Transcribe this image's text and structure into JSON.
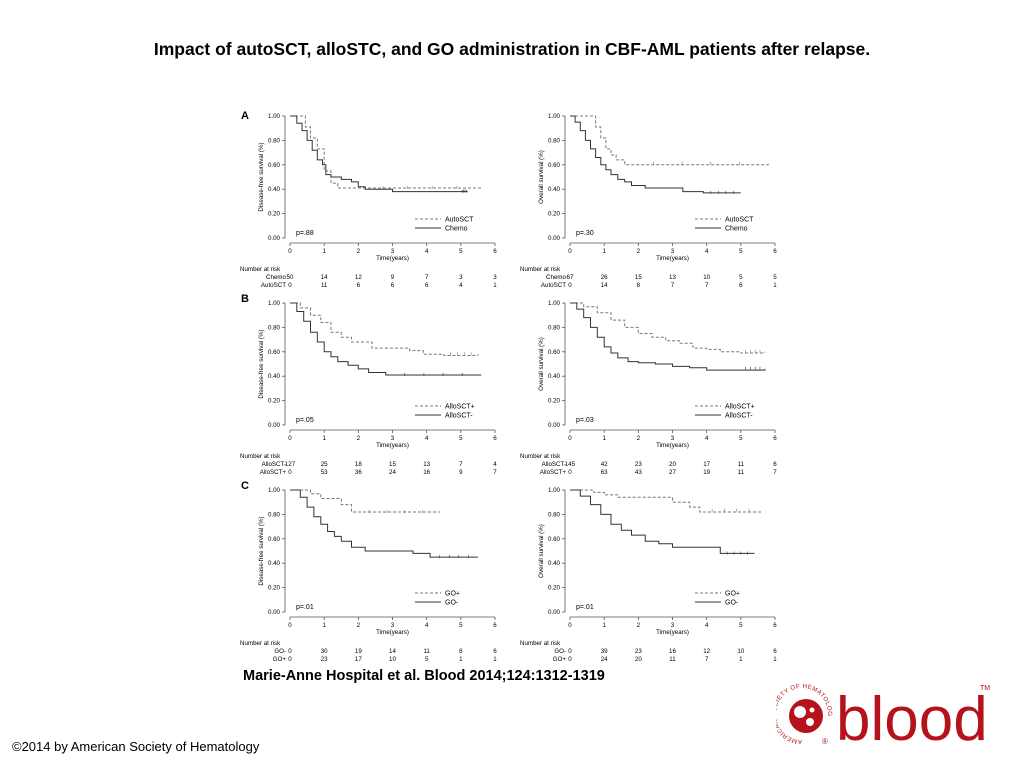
{
  "title": "Impact of autoSCT, alloSTC, and GO administration in CBF-AML patients after relapse.",
  "citation": "Marie-Anne Hospital et al. Blood 2014;124:1312-1319",
  "copyright": "©2014 by American Society of Hematology",
  "logo": {
    "word": "blood",
    "ring_text": "AMERICAN SOCIETY OF HEMATOLOGY",
    "tm": "TM",
    "registered": "®",
    "color": "#b5121b"
  },
  "panels": [
    {
      "letter": "A"
    },
    {
      "letter": "B"
    },
    {
      "letter": "C"
    }
  ],
  "chart_data": [
    {
      "type": "line",
      "panel": "A",
      "ylabel": "Disease-free survival (%)",
      "xlabel": "Time(years)",
      "xlim": [
        0,
        6
      ],
      "ylim": [
        0,
        1
      ],
      "xticks": [
        "0",
        "1",
        "2",
        "3",
        "4",
        "5",
        "6"
      ],
      "yticks": [
        "0.00",
        "0.20",
        "0.40",
        "0.60",
        "0.80",
        "1.00"
      ],
      "pvalue": "p=.88",
      "risk_title": "Number at risk",
      "series": [
        {
          "name": "AutoSCT",
          "dash": true,
          "x": [
            0,
            0.45,
            0.6,
            0.8,
            1.0,
            1.2,
            1.4,
            2.0,
            5.6
          ],
          "y": [
            1.0,
            0.91,
            0.82,
            0.73,
            0.55,
            0.45,
            0.41,
            0.41,
            0.41
          ]
        },
        {
          "name": "Chemo",
          "dash": false,
          "x": [
            0,
            0.2,
            0.35,
            0.5,
            0.65,
            0.8,
            0.95,
            1.05,
            1.2,
            1.5,
            1.8,
            2.0,
            2.2,
            3.0,
            5.0,
            5.2
          ],
          "y": [
            1.0,
            0.94,
            0.88,
            0.8,
            0.72,
            0.64,
            0.6,
            0.52,
            0.5,
            0.48,
            0.46,
            0.42,
            0.4,
            0.38,
            0.38,
            0.38
          ]
        }
      ],
      "risk_rows": [
        {
          "label": "Chemo",
          "values": [
            "50",
            "14",
            "12",
            "9",
            "7",
            "3",
            "3"
          ]
        },
        {
          "label": "AutoSCT",
          "values": [
            "0",
            "11",
            "6",
            "6",
            "6",
            "4",
            "1"
          ]
        }
      ]
    },
    {
      "type": "line",
      "panel": "A",
      "ylabel": "Overall survival (%)",
      "xlabel": "Time(years)",
      "xlim": [
        0,
        6
      ],
      "ylim": [
        0,
        1
      ],
      "xticks": [
        "0",
        "1",
        "2",
        "3",
        "4",
        "5",
        "6"
      ],
      "yticks": [
        "0.00",
        "0.20",
        "0.40",
        "0.60",
        "0.80",
        "1.00"
      ],
      "pvalue": "p=.30",
      "risk_title": "Number at risk",
      "series": [
        {
          "name": "AutoSCT",
          "dash": true,
          "x": [
            0,
            0.75,
            0.9,
            1.05,
            1.2,
            1.35,
            1.6,
            5.8
          ],
          "y": [
            1.0,
            0.91,
            0.82,
            0.73,
            0.68,
            0.64,
            0.6,
            0.61
          ]
        },
        {
          "name": "Chemo",
          "dash": false,
          "x": [
            0,
            0.15,
            0.3,
            0.45,
            0.6,
            0.75,
            0.9,
            1.05,
            1.2,
            1.4,
            1.6,
            1.8,
            2.2,
            2.6,
            3.3,
            3.9,
            5.0
          ],
          "y": [
            1.0,
            0.95,
            0.88,
            0.8,
            0.73,
            0.66,
            0.6,
            0.56,
            0.52,
            0.48,
            0.46,
            0.43,
            0.41,
            0.41,
            0.38,
            0.37,
            0.37
          ]
        }
      ],
      "risk_rows": [
        {
          "label": "Chemo",
          "values": [
            "67",
            "26",
            "15",
            "13",
            "10",
            "5",
            "5"
          ]
        },
        {
          "label": "AutoSCT",
          "values": [
            "0",
            "14",
            "8",
            "7",
            "7",
            "6",
            "1"
          ]
        }
      ]
    },
    {
      "type": "line",
      "panel": "B",
      "ylabel": "Disease-free survival (%)",
      "xlabel": "Time(years)",
      "xlim": [
        0,
        6
      ],
      "ylim": [
        0,
        1
      ],
      "xticks": [
        "0",
        "1",
        "2",
        "3",
        "4",
        "5",
        "6"
      ],
      "yticks": [
        "0.00",
        "0.20",
        "0.40",
        "0.60",
        "0.80",
        "1.00"
      ],
      "pvalue": "p=.05",
      "risk_title": "Number at risk",
      "series": [
        {
          "name": "AlloSCT+",
          "dash": true,
          "x": [
            0,
            0.3,
            0.6,
            0.9,
            1.2,
            1.5,
            1.8,
            2.4,
            3.0,
            3.5,
            3.9,
            4.5,
            5.5
          ],
          "y": [
            1.0,
            0.96,
            0.9,
            0.84,
            0.76,
            0.72,
            0.68,
            0.63,
            0.63,
            0.61,
            0.58,
            0.57,
            0.58
          ]
        },
        {
          "name": "AlloSCT-",
          "dash": false,
          "x": [
            0,
            0.2,
            0.4,
            0.6,
            0.8,
            1.0,
            1.2,
            1.4,
            1.7,
            2.0,
            2.3,
            2.8,
            5.6
          ],
          "y": [
            1.0,
            0.93,
            0.85,
            0.76,
            0.68,
            0.6,
            0.56,
            0.52,
            0.49,
            0.46,
            0.43,
            0.41,
            0.41
          ]
        }
      ],
      "risk_rows": [
        {
          "label": "AlloSCT-",
          "values": [
            "127",
            "25",
            "18",
            "15",
            "13",
            "7",
            "4"
          ]
        },
        {
          "label": "AlloSCT+",
          "values": [
            "0",
            "53",
            "36",
            "24",
            "16",
            "9",
            "7"
          ]
        }
      ]
    },
    {
      "type": "line",
      "panel": "B",
      "ylabel": "Overall survival (%)",
      "xlabel": "Time(years)",
      "xlim": [
        0,
        6
      ],
      "ylim": [
        0,
        1
      ],
      "xticks": [
        "0",
        "1",
        "2",
        "3",
        "4",
        "5",
        "6"
      ],
      "yticks": [
        "0.00",
        "0.20",
        "0.40",
        "0.60",
        "0.80",
        "1.00"
      ],
      "pvalue": "p=.03",
      "risk_title": "Number at risk",
      "series": [
        {
          "name": "AlloSCT+",
          "dash": true,
          "x": [
            0,
            0.4,
            0.8,
            1.2,
            1.6,
            2.0,
            2.4,
            2.8,
            3.2,
            3.6,
            4.0,
            4.4,
            5.0,
            5.7
          ],
          "y": [
            1.0,
            0.97,
            0.92,
            0.86,
            0.8,
            0.75,
            0.72,
            0.69,
            0.67,
            0.63,
            0.62,
            0.6,
            0.59,
            0.6
          ]
        },
        {
          "name": "AlloSCT-",
          "dash": false,
          "x": [
            0,
            0.2,
            0.4,
            0.6,
            0.8,
            1.0,
            1.2,
            1.4,
            1.7,
            2.0,
            2.5,
            3.0,
            3.5,
            4.0,
            5.0,
            5.7
          ],
          "y": [
            1.0,
            0.95,
            0.88,
            0.8,
            0.72,
            0.64,
            0.59,
            0.55,
            0.52,
            0.51,
            0.5,
            0.48,
            0.47,
            0.45,
            0.45,
            0.46
          ]
        }
      ],
      "risk_rows": [
        {
          "label": "AlloSCT-",
          "values": [
            "145",
            "42",
            "23",
            "20",
            "17",
            "11",
            "6"
          ]
        },
        {
          "label": "AlloSCT+",
          "values": [
            "0",
            "63",
            "43",
            "27",
            "19",
            "11",
            "7"
          ]
        }
      ]
    },
    {
      "type": "line",
      "panel": "C",
      "ylabel": "Disease-free survival (%)",
      "xlabel": "Time(years)",
      "xlim": [
        0,
        6
      ],
      "ylim": [
        0,
        1
      ],
      "xticks": [
        "0",
        "1",
        "2",
        "3",
        "4",
        "5",
        "6"
      ],
      "yticks": [
        "0.00",
        "0.20",
        "0.40",
        "0.60",
        "0.80",
        "1.00"
      ],
      "pvalue": "p=.01",
      "risk_title": "Number at risk",
      "series": [
        {
          "name": "GO+",
          "dash": true,
          "x": [
            0,
            0.6,
            0.9,
            1.5,
            1.8,
            4.4
          ],
          "y": [
            1.0,
            0.97,
            0.93,
            0.88,
            0.82,
            0.82
          ]
        },
        {
          "name": "GO-",
          "dash": false,
          "x": [
            0,
            0.3,
            0.5,
            0.7,
            0.9,
            1.1,
            1.3,
            1.5,
            1.8,
            2.2,
            3.0,
            3.6,
            4.1,
            5.5
          ],
          "y": [
            1.0,
            0.94,
            0.86,
            0.78,
            0.72,
            0.66,
            0.62,
            0.58,
            0.53,
            0.5,
            0.5,
            0.48,
            0.45,
            0.45
          ]
        }
      ],
      "risk_rows": [
        {
          "label": "GO-",
          "values": [
            "0",
            "30",
            "19",
            "14",
            "11",
            "8",
            "6"
          ]
        },
        {
          "label": "GO+",
          "values": [
            "0",
            "23",
            "17",
            "10",
            "5",
            "1",
            "1"
          ]
        }
      ]
    },
    {
      "type": "line",
      "panel": "C",
      "ylabel": "Overall survival (%)",
      "xlabel": "Time(years)",
      "xlim": [
        0,
        6
      ],
      "ylim": [
        0,
        1
      ],
      "xticks": [
        "0",
        "1",
        "2",
        "3",
        "4",
        "5",
        "6"
      ],
      "yticks": [
        "0.00",
        "0.20",
        "0.40",
        "0.60",
        "0.80",
        "1.00"
      ],
      "pvalue": "p=.01",
      "risk_title": "Number at risk",
      "series": [
        {
          "name": "GO+",
          "dash": true,
          "x": [
            0,
            0.7,
            1.0,
            1.4,
            2.6,
            3.0,
            3.5,
            3.8,
            5.6
          ],
          "y": [
            1.0,
            0.98,
            0.96,
            0.94,
            0.94,
            0.9,
            0.86,
            0.82,
            0.83
          ]
        },
        {
          "name": "GO-",
          "dash": false,
          "x": [
            0,
            0.3,
            0.6,
            0.9,
            1.2,
            1.5,
            1.8,
            2.2,
            2.6,
            3.0,
            4.0,
            4.4,
            5.4
          ],
          "y": [
            1.0,
            0.95,
            0.88,
            0.8,
            0.72,
            0.67,
            0.63,
            0.58,
            0.56,
            0.53,
            0.53,
            0.48,
            0.48
          ]
        }
      ],
      "risk_rows": [
        {
          "label": "GO-",
          "values": [
            "0",
            "39",
            "23",
            "16",
            "12",
            "10",
            "6"
          ]
        },
        {
          "label": "GO+",
          "values": [
            "0",
            "24",
            "20",
            "11",
            "7",
            "1",
            "1"
          ]
        }
      ]
    }
  ]
}
